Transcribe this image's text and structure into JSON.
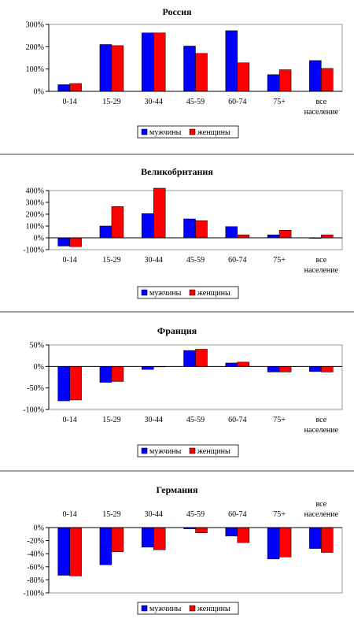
{
  "colors": {
    "men": "#0000ff",
    "women": "#ff0000",
    "separator": "#808080",
    "axis": "#000000"
  },
  "legend_labels": {
    "men": "мужчины",
    "women": "женщины"
  },
  "chart_data": [
    {
      "type": "bar",
      "title": "Россия",
      "categories": [
        "0-14",
        "15-29",
        "30-44",
        "45-59",
        "60-74",
        "75+",
        "все население"
      ],
      "category_lines": [
        [
          "0-14"
        ],
        [
          "15-29"
        ],
        [
          "30-44"
        ],
        [
          "45-59"
        ],
        [
          "60-74"
        ],
        [
          "75+"
        ],
        [
          "все",
          "население"
        ]
      ],
      "series": [
        {
          "name": "мужчины",
          "values": [
            30,
            210,
            262,
            203,
            272,
            75,
            138
          ]
        },
        {
          "name": "женщины",
          "values": [
            35,
            205,
            262,
            170,
            128,
            97,
            103
          ]
        }
      ],
      "ylim": [
        0,
        300
      ],
      "yticks": [
        0,
        100,
        200,
        300
      ],
      "ytick_labels": [
        "0%",
        "100%",
        "200%",
        "300%"
      ],
      "category_label_position": "bottom",
      "legend_position": "bottom"
    },
    {
      "type": "bar",
      "title": "Великобритания",
      "categories": [
        "0-14",
        "15-29",
        "30-44",
        "45-59",
        "60-74",
        "75+",
        "все население"
      ],
      "category_lines": [
        [
          "0-14"
        ],
        [
          "15-29"
        ],
        [
          "30-44"
        ],
        [
          "45-59"
        ],
        [
          "60-74"
        ],
        [
          "75+"
        ],
        [
          "все",
          "население"
        ]
      ],
      "series": [
        {
          "name": "мужчины",
          "values": [
            -70,
            100,
            205,
            160,
            95,
            25,
            -5
          ]
        },
        {
          "name": "женщины",
          "values": [
            -75,
            265,
            420,
            145,
            25,
            65,
            25
          ]
        }
      ],
      "ylim": [
        -100,
        400
      ],
      "yticks": [
        -100,
        0,
        100,
        200,
        300,
        400
      ],
      "ytick_labels": [
        "-100%",
        "0%",
        "100%",
        "200%",
        "300%",
        "400%"
      ],
      "category_label_position": "bottom",
      "legend_position": "bottom"
    },
    {
      "type": "bar",
      "title": "Франция",
      "categories": [
        "0-14",
        "15-29",
        "30-44",
        "45-59",
        "60-74",
        "75+",
        "все население"
      ],
      "category_lines": [
        [
          "0-14"
        ],
        [
          "15-29"
        ],
        [
          "30-44"
        ],
        [
          "45-59"
        ],
        [
          "60-74"
        ],
        [
          "75+"
        ],
        [
          "все",
          "население"
        ]
      ],
      "series": [
        {
          "name": "мужчины",
          "values": [
            -80,
            -37,
            -7,
            37,
            8,
            -13,
            -12
          ]
        },
        {
          "name": "женщины",
          "values": [
            -78,
            -35,
            0,
            40,
            10,
            -13,
            -13
          ]
        }
      ],
      "ylim": [
        -100,
        50
      ],
      "yticks": [
        -100,
        -50,
        0,
        50
      ],
      "ytick_labels": [
        "-100%",
        "-50%",
        "0%",
        "50%"
      ],
      "category_label_position": "bottom",
      "legend_position": "bottom"
    },
    {
      "type": "bar",
      "title": "Германия",
      "categories": [
        "0-14",
        "15-29",
        "30-44",
        "45-59",
        "60-74",
        "75+",
        "все население"
      ],
      "category_lines": [
        [
          "0-14"
        ],
        [
          "15-29"
        ],
        [
          "30-44"
        ],
        [
          "45-59"
        ],
        [
          "60-74"
        ],
        [
          "75+"
        ],
        [
          "все",
          "население"
        ]
      ],
      "series": [
        {
          "name": "мужчины",
          "values": [
            -73,
            -57,
            -30,
            -2,
            -13,
            -48,
            -32
          ]
        },
        {
          "name": "женщины",
          "values": [
            -74,
            -37,
            -34,
            -8,
            -23,
            -45,
            -38
          ]
        }
      ],
      "ylim": [
        -100,
        0
      ],
      "yticks": [
        -100,
        -80,
        -60,
        -40,
        -20,
        0
      ],
      "ytick_labels": [
        "-100%",
        "-80%",
        "-60%",
        "-40%",
        "-20%",
        "0%"
      ],
      "category_label_position": "top",
      "legend_position": "bottom"
    }
  ]
}
